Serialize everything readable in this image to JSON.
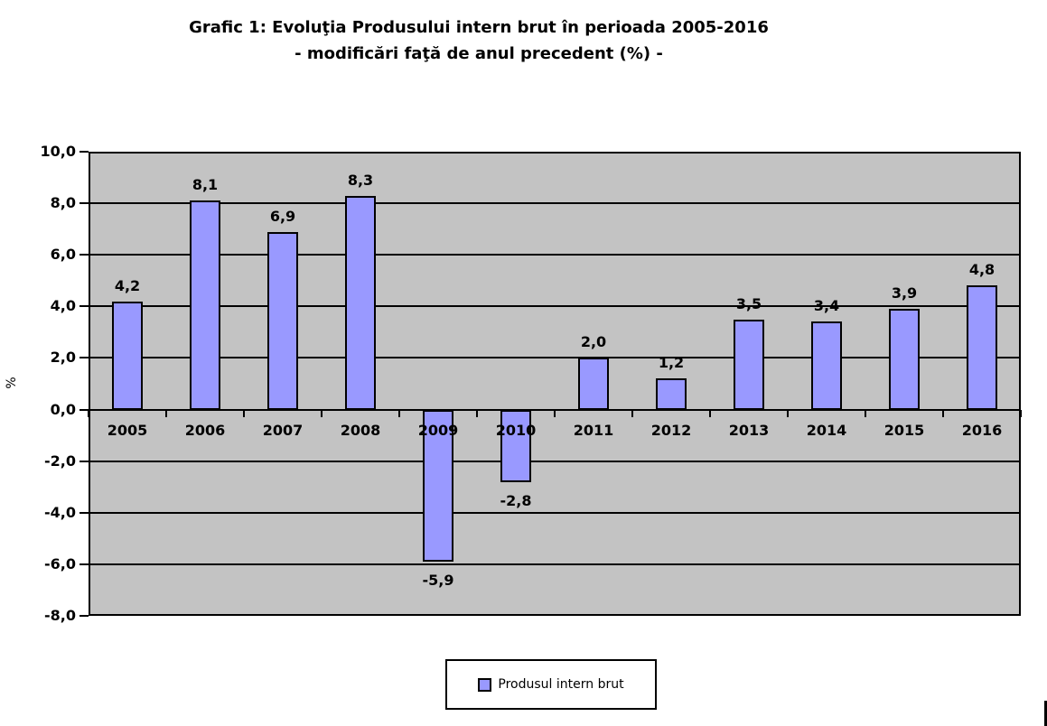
{
  "title": {
    "line1": "Grafic 1: Evoluţia Produsului intern brut în perioada 2005-2016",
    "line2": "- modificări faţă de anul precedent (%) -"
  },
  "chart_data": {
    "type": "bar",
    "title": "Grafic 1: Evoluţia Produsului intern brut în perioada 2005-2016 - modificări faţă de anul precedent (%) -",
    "categories": [
      "2005",
      "2006",
      "2007",
      "2008",
      "2009",
      "2010",
      "2011",
      "2012",
      "2013",
      "2014",
      "2015",
      "2016"
    ],
    "values": [
      4.2,
      8.1,
      6.9,
      8.3,
      -5.9,
      -2.8,
      2.0,
      1.2,
      3.5,
      3.4,
      3.9,
      4.8
    ],
    "value_labels": [
      "4,2",
      "8,1",
      "6,9",
      "8,3",
      "-5,9",
      "-2,8",
      "2,0",
      "1,2",
      "3,5",
      "3,4",
      "3,9",
      "4,8"
    ],
    "xlabel": "",
    "ylabel": "%",
    "ylim": [
      -8,
      10
    ],
    "ytick_step": 2,
    "ytick_labels": [
      "10,0",
      "8,0",
      "6,0",
      "4,0",
      "2,0",
      "0,0",
      "-2,0",
      "-4,0",
      "-6,0",
      "-8,0"
    ],
    "grid": true,
    "legend": {
      "position": "bottom",
      "entries": [
        "Produsul intern brut"
      ]
    },
    "colors": {
      "bar_fill": "#9999FF",
      "bar_border": "#000000",
      "plot_bg": "#C3C3C3",
      "gridline": "#000000",
      "page_bg": "#FFFFFF",
      "text": "#000000"
    }
  }
}
